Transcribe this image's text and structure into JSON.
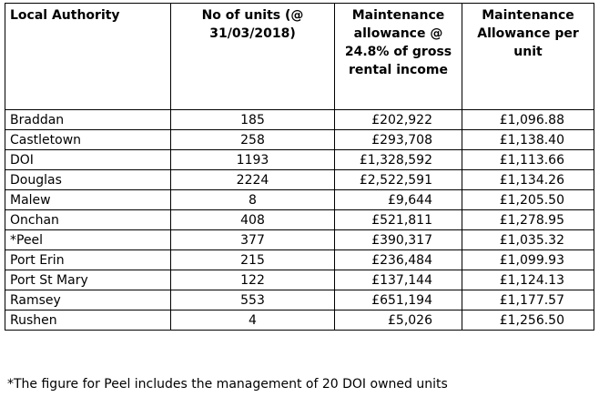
{
  "table": {
    "headers": [
      "Local Authority",
      "No of units (@ 31/03/2018)",
      "Maintenance allowance @ 24.8% of gross rental income",
      "Maintenance Allowance per unit"
    ],
    "rows": [
      [
        "Braddan",
        "185",
        "£202,922",
        "£1,096.88"
      ],
      [
        "Castletown",
        "258",
        "£293,708",
        "£1,138.40"
      ],
      [
        "DOI",
        "1193",
        "£1,328,592",
        "£1,113.66"
      ],
      [
        "Douglas",
        "2224",
        "£2,522,591",
        "£1,134.26"
      ],
      [
        "Malew",
        "8",
        "£9,644",
        "£1,205.50"
      ],
      [
        "Onchan",
        "408",
        "£521,811",
        "£1,278.95"
      ],
      [
        "*Peel",
        "377",
        "£390,317",
        "£1,035.32"
      ],
      [
        "Port Erin",
        "215",
        "£236,484",
        "£1,099.93"
      ],
      [
        "Port St Mary",
        "122",
        "£137,144",
        "£1,124.13"
      ],
      [
        "Ramsey",
        "553",
        "£651,194",
        "£1,177.57"
      ],
      [
        "Rushen",
        "4",
        "£5,026",
        "£1,256.50"
      ]
    ]
  },
  "footnote": "*The figure for Peel includes the management of 20 DOI owned units"
}
